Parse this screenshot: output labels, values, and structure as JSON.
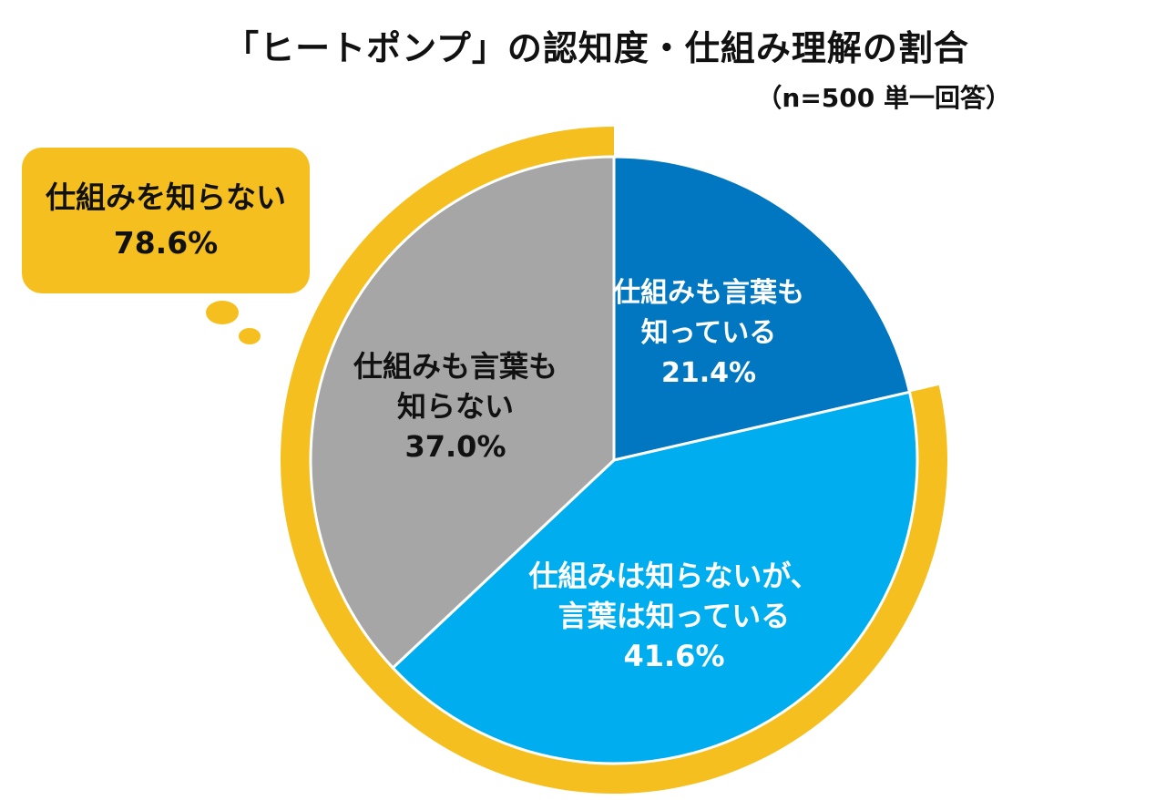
{
  "chart_data": {
    "type": "pie",
    "title": "「ヒートポンプ」の認知度・仕組み理解の割合",
    "subtitle": "（n=500 単一回答）",
    "slices": [
      {
        "label_lines": [
          "仕組みも言葉も",
          "知っている"
        ],
        "value": 21.4,
        "value_label": "21.4%",
        "color": "#0077C0",
        "text_color": "#ffffff"
      },
      {
        "label_lines": [
          "仕組みは知らないが、",
          "言葉は知っている"
        ],
        "value": 41.6,
        "value_label": "41.6%",
        "color": "#00AEEF",
        "text_color": "#ffffff"
      },
      {
        "label_lines": [
          "仕組みも言葉も",
          "知らない"
        ],
        "value": 37.0,
        "value_label": "37.0%",
        "color": "#A6A6A6",
        "text_color": "#111111"
      }
    ],
    "highlight": {
      "label": "仕組みを知らない",
      "value": 78.6,
      "value_label": "78.6%",
      "color": "#F5C01F",
      "covers_slices": [
        1,
        2
      ]
    },
    "start_angle": "12 o'clock",
    "direction": "clockwise"
  }
}
